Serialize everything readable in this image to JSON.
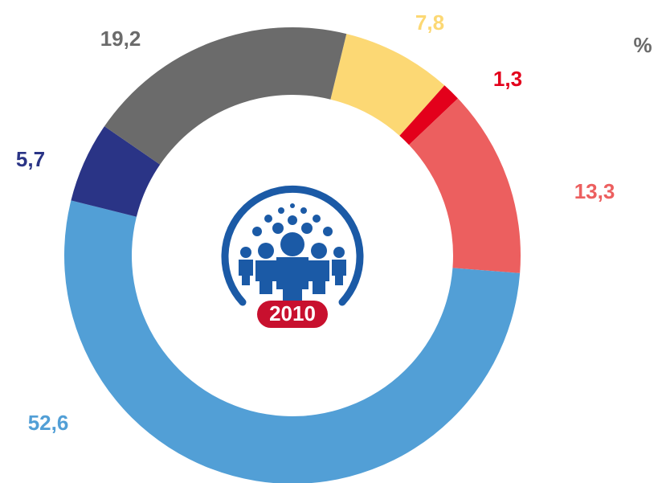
{
  "chart_data": {
    "type": "donut",
    "unit": "%",
    "categories": [
      null,
      null,
      null,
      null,
      null,
      null
    ],
    "values": [
      7.8,
      1.3,
      13.3,
      52.6,
      5.7,
      19.2
    ],
    "value_labels": [
      "7,8",
      "1,3",
      "13,3",
      "52,6",
      "5,7",
      "19,2"
    ],
    "colors": [
      "#fcd874",
      "#e3001b",
      "#ec5f5f",
      "#529fd6",
      "#2a3486",
      "#6b6b6b"
    ],
    "logo_text": "2010"
  }
}
